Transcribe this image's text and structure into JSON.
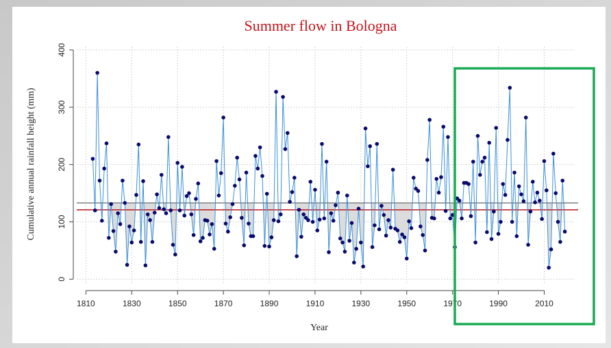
{
  "chart_data": {
    "type": "line",
    "title": "Summer flow in Bologna",
    "x_label": "Year",
    "y_label": "Cumulative annual rainfall height (mm)",
    "x": [
      1813,
      1814,
      1815,
      1816,
      1817,
      1818,
      1819,
      1820,
      1821,
      1822,
      1823,
      1824,
      1825,
      1826,
      1827,
      1828,
      1829,
      1830,
      1831,
      1832,
      1833,
      1834,
      1835,
      1836,
      1837,
      1838,
      1839,
      1840,
      1841,
      1842,
      1843,
      1844,
      1845,
      1846,
      1847,
      1848,
      1849,
      1850,
      1851,
      1852,
      1853,
      1854,
      1855,
      1856,
      1857,
      1858,
      1859,
      1860,
      1861,
      1862,
      1863,
      1864,
      1865,
      1866,
      1867,
      1868,
      1869,
      1870,
      1871,
      1872,
      1873,
      1874,
      1875,
      1876,
      1877,
      1878,
      1879,
      1880,
      1881,
      1882,
      1883,
      1884,
      1885,
      1886,
      1887,
      1888,
      1889,
      1890,
      1891,
      1892,
      1893,
      1894,
      1895,
      1896,
      1897,
      1898,
      1899,
      1900,
      1901,
      1902,
      1903,
      1904,
      1905,
      1906,
      1907,
      1908,
      1909,
      1910,
      1911,
      1912,
      1913,
      1914,
      1915,
      1916,
      1917,
      1918,
      1919,
      1920,
      1921,
      1922,
      1923,
      1924,
      1925,
      1926,
      1927,
      1928,
      1929,
      1930,
      1931,
      1932,
      1933,
      1934,
      1935,
      1936,
      1937,
      1938,
      1939,
      1940,
      1941,
      1942,
      1943,
      1944,
      1945,
      1946,
      1947,
      1948,
      1949,
      1950,
      1951,
      1952,
      1953,
      1954,
      1955,
      1956,
      1957,
      1958,
      1959,
      1960,
      1961,
      1962,
      1963,
      1964,
      1965,
      1966,
      1967,
      1968,
      1969,
      1970,
      1971,
      1972,
      1973,
      1974,
      1975,
      1976,
      1977,
      1978,
      1979,
      1980,
      1981,
      1982,
      1983,
      1984,
      1985,
      1986,
      1987,
      1988,
      1989,
      1990,
      1991,
      1992,
      1993,
      1994,
      1995,
      1996,
      1997,
      1998,
      1999,
      2000,
      2001,
      2002,
      2003,
      2004,
      2005,
      2006,
      2007,
      2008,
      2009,
      2010,
      2011,
      2012,
      2013,
      2014,
      2015,
      2016,
      2017,
      2018,
      2019
    ],
    "values": [
      210,
      120,
      360,
      172,
      102,
      193,
      237,
      72,
      131,
      84,
      48,
      115,
      96,
      172,
      133,
      25,
      92,
      64,
      85,
      147,
      235,
      65,
      171,
      24,
      113,
      103,
      65,
      116,
      148,
      124,
      182,
      122,
      115,
      248,
      120,
      60,
      43,
      203,
      120,
      196,
      111,
      145,
      150,
      113,
      77,
      140,
      167,
      66,
      72,
      103,
      102,
      78,
      96,
      53,
      206,
      146,
      185,
      282,
      97,
      83,
      108,
      131,
      163,
      212,
      174,
      107,
      59,
      186,
      97,
      75,
      75,
      215,
      193,
      230,
      180,
      58,
      149,
      57,
      73,
      103,
      327,
      101,
      113,
      318,
      227,
      255,
      135,
      152,
      177,
      40,
      121,
      74,
      113,
      107,
      103,
      170,
      100,
      156,
      85,
      104,
      236,
      106,
      205,
      47,
      115,
      102,
      129,
      151,
      71,
      64,
      48,
      146,
      67,
      98,
      29,
      53,
      123,
      64,
      22,
      263,
      197,
      232,
      56,
      94,
      236,
      87,
      128,
      112,
      76,
      103,
      90,
      191,
      88,
      85,
      65,
      78,
      73,
      36,
      101,
      89,
      177,
      158,
      154,
      92,
      77,
      50,
      208,
      278,
      107,
      106,
      175,
      151,
      178,
      266,
      119,
      248,
      106,
      112,
      56,
      141,
      137,
      106,
      168,
      168,
      166,
      110,
      205,
      64,
      250,
      182,
      205,
      212,
      82,
      238,
      70,
      118,
      264,
      79,
      100,
      166,
      147,
      243,
      334,
      100,
      186,
      75,
      162,
      148,
      136,
      282,
      60,
      118,
      170,
      134,
      151,
      137,
      105,
      206,
      155,
      20,
      52,
      219,
      150,
      100,
      65,
      172,
      83
    ],
    "line_color": "#3a8fdc",
    "marker_color": "#0a0a6e",
    "fill_color": "#dcdcdc",
    "reference_lines": [
      {
        "value": 133,
        "color": "#8a8a8a"
      },
      {
        "value": 121,
        "color": "#c0141a"
      }
    ],
    "xlim": [
      1806,
      2023
    ],
    "ylim": [
      -8,
      406
    ],
    "xticks": [
      1810,
      1830,
      1850,
      1870,
      1890,
      1910,
      1930,
      1950,
      1970,
      1990,
      2010
    ],
    "yticks": [
      0,
      100,
      200,
      300,
      400
    ],
    "grid": true,
    "title_color": "#c0141a"
  }
}
